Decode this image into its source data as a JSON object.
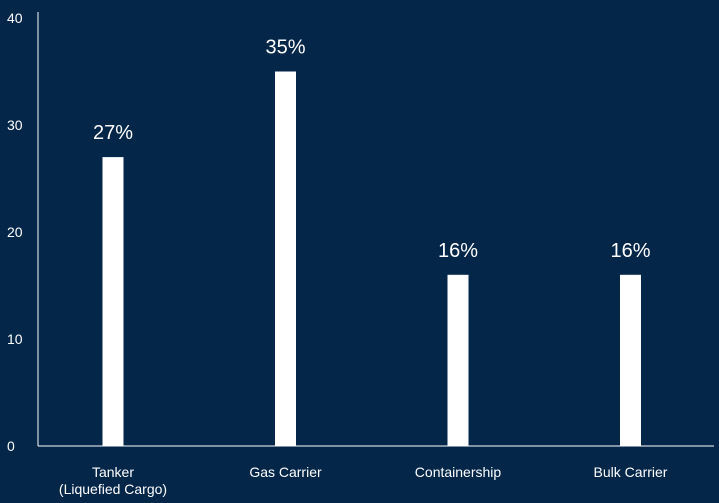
{
  "colors": {
    "background": "#032649",
    "bar": "#ffffff",
    "text": "#ffffff",
    "axis": "#ffffff"
  },
  "chart_data": {
    "type": "bar",
    "title": "",
    "xlabel": "",
    "ylabel": "",
    "ylim": [
      0,
      40
    ],
    "yticks": [
      0,
      10,
      20,
      30,
      40
    ],
    "categories": [
      [
        "Tanker",
        "(Liquefied Cargo)"
      ],
      [
        "Gas Carrier"
      ],
      [
        "Containership"
      ],
      [
        "Bulk Carrier"
      ]
    ],
    "values": [
      27,
      35,
      16,
      16
    ],
    "data_labels": [
      "27%",
      "35%",
      "16%",
      "16%"
    ],
    "grid": false,
    "legend": "none"
  }
}
